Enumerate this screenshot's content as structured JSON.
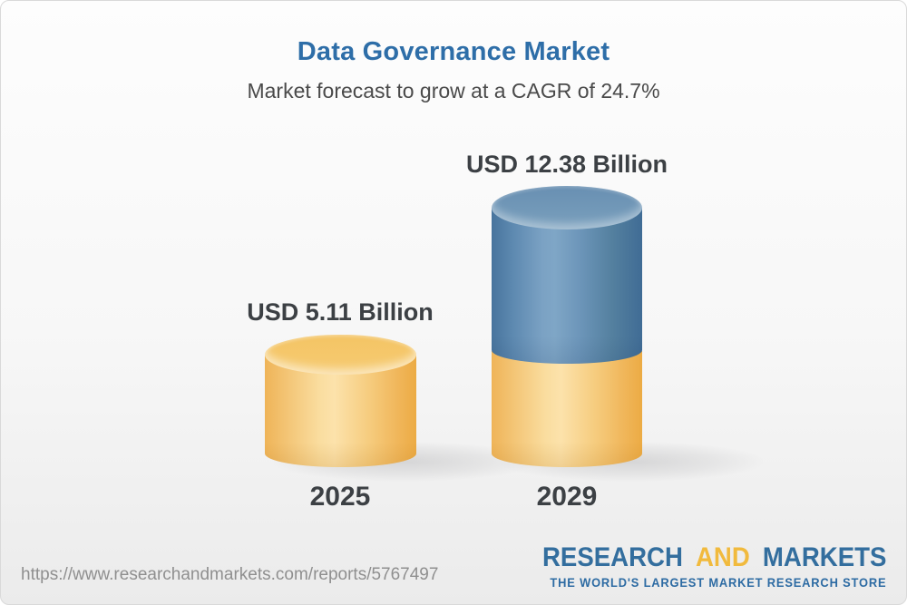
{
  "header": {
    "title": "Data Governance Market",
    "subtitle": "Market forecast to grow at a CAGR of 24.7%"
  },
  "chart_data": {
    "type": "bar",
    "subtype": "3d-cylinder",
    "categories": [
      "2025",
      "2029"
    ],
    "values": [
      5.11,
      12.38
    ],
    "value_labels": [
      "USD 5.11 Billion",
      "USD 12.38 Billion"
    ],
    "unit": "USD Billion",
    "cagr_percent": 24.7,
    "title": "Data Governance Market",
    "xlabel": "",
    "ylabel": "",
    "legend": "none",
    "grid": false,
    "colors": {
      "bar_2025": "#f2c härlig066",
      "bar_2029_upper": "#5d88ae",
      "bar_2029_base": "#f2c066",
      "label_text": "#3c4044"
    }
  },
  "footer": {
    "url": "https://www.researchandmarkets.com/reports/5767497",
    "logo": {
      "research": "RESEARCH",
      "and": "AND",
      "markets": "MARKETS",
      "tagline": "THE WORLD'S LARGEST MARKET RESEARCH STORE"
    }
  },
  "colors": {
    "title_blue": "#2e6ea8",
    "subtitle_gray": "#4a4a4a",
    "url_gray": "#8f8f8f",
    "logo_blue": "#336e9e",
    "logo_yellow": "#f1ba3d",
    "background_top": "#fdfdfd",
    "background_bottom": "#ebebeb"
  }
}
